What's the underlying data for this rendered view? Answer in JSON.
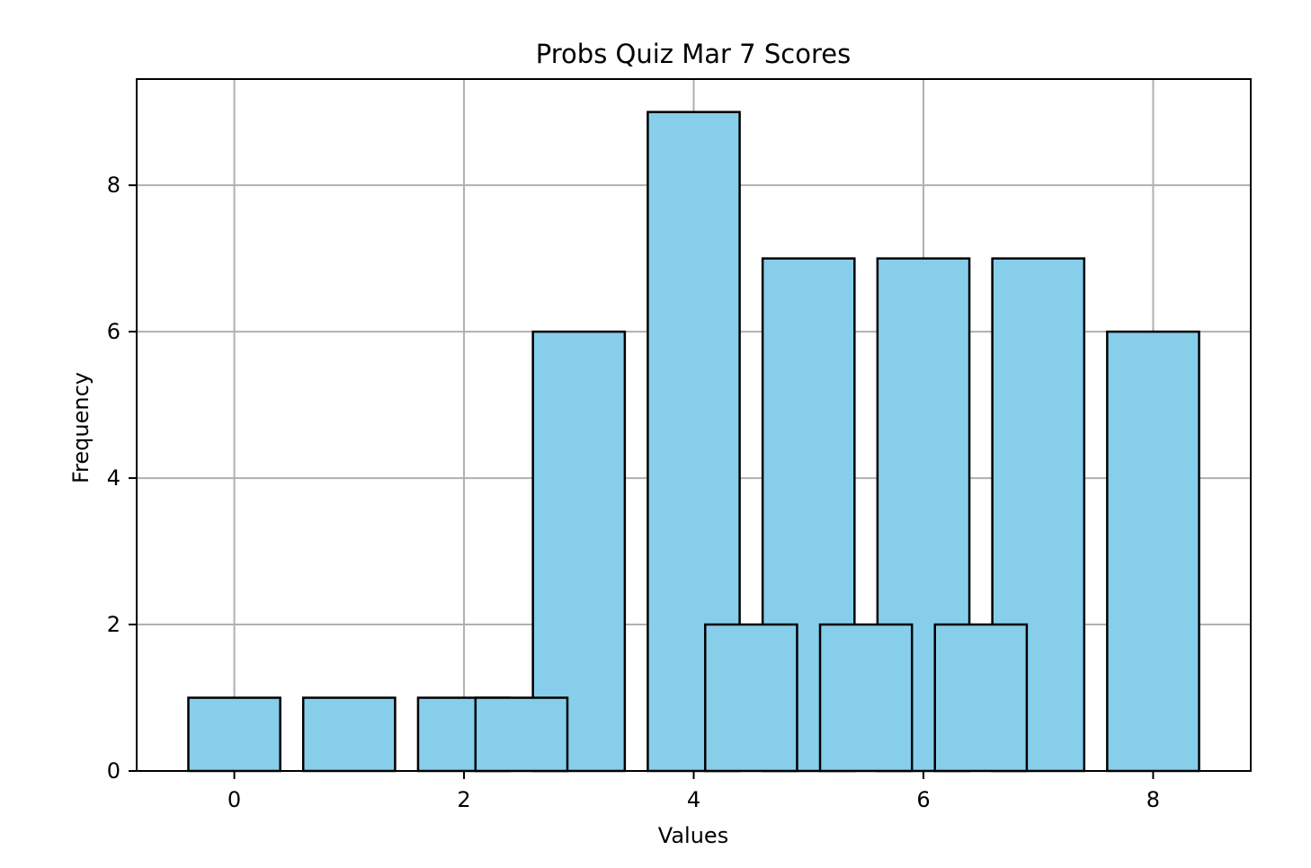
{
  "chart_data": {
    "type": "bar",
    "title": "Probs Quiz Mar 7 Scores",
    "xlabel": "Values",
    "ylabel": "Frequency",
    "xlim": [
      -0.85,
      8.85
    ],
    "ylim": [
      0,
      9.45
    ],
    "xticks": [
      "0",
      "2",
      "4",
      "6",
      "8"
    ],
    "yticks": [
      "0",
      "2",
      "4",
      "6",
      "8"
    ],
    "grid": true,
    "legend": "none",
    "bar_width": 0.8,
    "colors": {
      "bar_fill": "#87CEEB",
      "bar_edge": "#000000",
      "grid": "#b0b0b0"
    },
    "bars": [
      {
        "x": 0,
        "value": 1
      },
      {
        "x": 1,
        "value": 1
      },
      {
        "x": 2,
        "value": 1
      },
      {
        "x": 3,
        "value": 6
      },
      {
        "x": 4,
        "value": 9
      },
      {
        "x": 5,
        "value": 7
      },
      {
        "x": 6,
        "value": 7
      },
      {
        "x": 7,
        "value": 7
      },
      {
        "x": 8,
        "value": 6
      },
      {
        "x": 2.5,
        "value": 1
      },
      {
        "x": 4.5,
        "value": 2
      },
      {
        "x": 5.5,
        "value": 2
      },
      {
        "x": 6.5,
        "value": 2
      }
    ]
  }
}
